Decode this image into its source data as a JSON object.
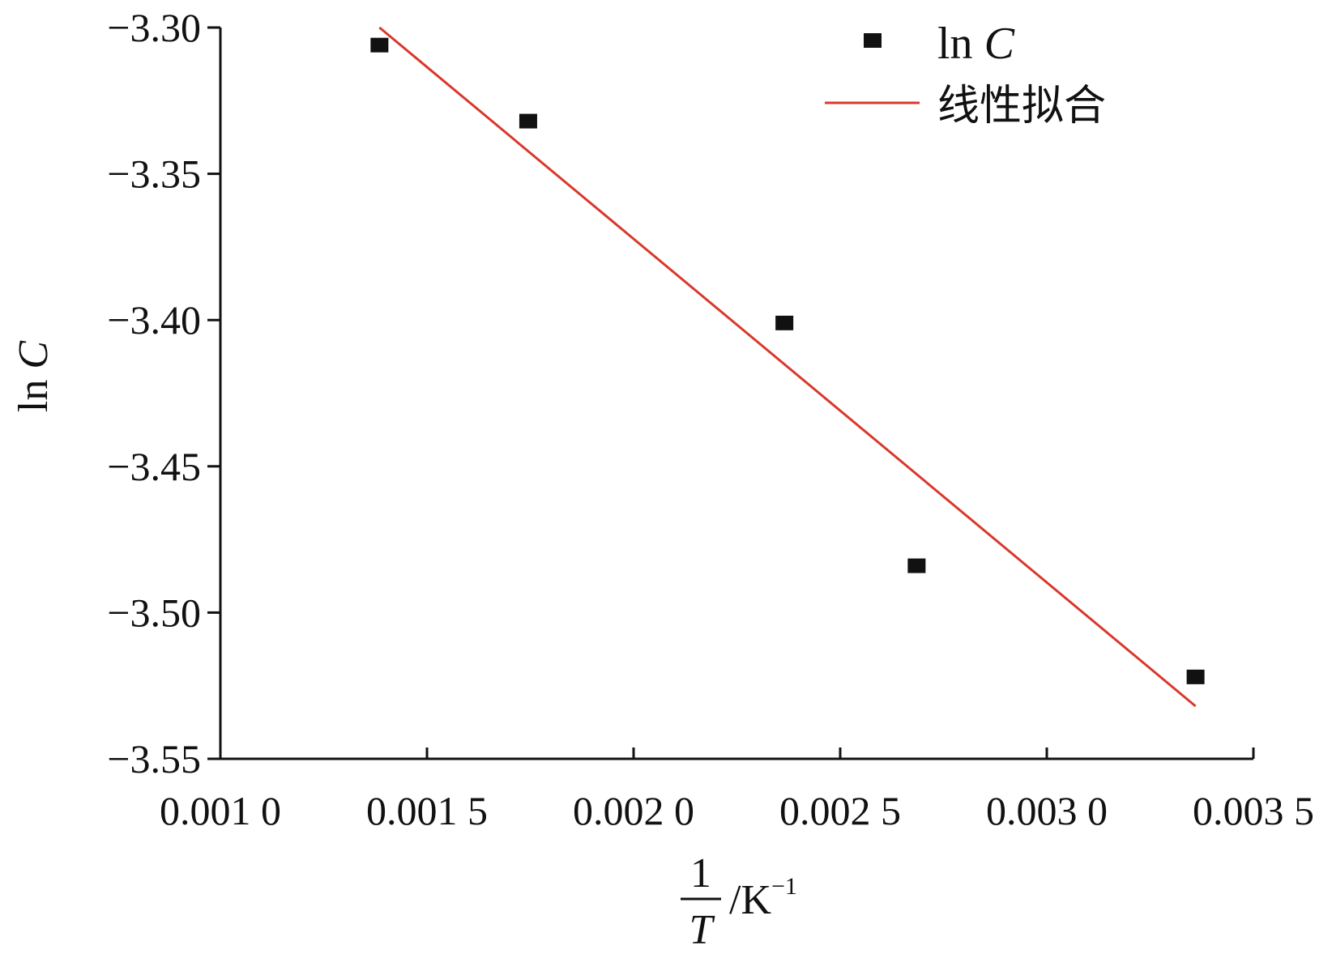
{
  "chart_data": {
    "type": "scatter",
    "xlim": [
      0.001,
      0.0035
    ],
    "ylim": [
      -3.55,
      -3.3
    ],
    "x_ticks": [
      0.001,
      0.0015,
      0.002,
      0.0025,
      0.003,
      0.0035
    ],
    "x_tick_labels": [
      "0.001 0",
      "0.001 5",
      "0.002 0",
      "0.002 5",
      "0.003 0",
      "0.003 5"
    ],
    "y_ticks": [
      -3.3,
      -3.35,
      -3.4,
      -3.45,
      -3.5,
      -3.55
    ],
    "y_tick_labels": [
      "−3.30",
      "−3.35",
      "−3.40",
      "−3.45",
      "−3.50",
      "−3.55"
    ],
    "grid": false,
    "legend_placement": "top-right",
    "xlabel": {
      "numerator": "1",
      "denominator": "T",
      "unit": "/K",
      "unit_exponent": "−1"
    },
    "ylabel": {
      "prefix": "ln ",
      "symbol": "C"
    },
    "series": [
      {
        "legend_prefix": "ln ",
        "legend_symbol": "C",
        "kind": "scatter",
        "marker": "square",
        "color": "#111111",
        "x": [
          0.001385,
          0.001745,
          0.002365,
          0.002685,
          0.00336
        ],
        "y": [
          -3.306,
          -3.332,
          -3.401,
          -3.484,
          -3.522
        ]
      },
      {
        "name": "线性拟合",
        "kind": "line",
        "color": "#d9382b",
        "x": [
          0.001385,
          0.00336
        ],
        "y": [
          -3.3,
          -3.532
        ]
      }
    ]
  }
}
